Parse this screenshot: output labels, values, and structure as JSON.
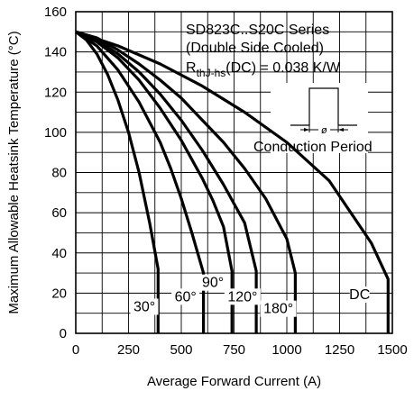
{
  "chart_data": {
    "type": "line",
    "title": "",
    "xlabel": "Average Forward Current (A)",
    "ylabel": "Maximum Allowable Heatsink Temperature (°C)",
    "xlim": [
      0,
      1500
    ],
    "ylim": [
      0,
      160
    ],
    "x_ticks": [
      "0",
      "250",
      "500",
      "750",
      "1000",
      "1250",
      "1500"
    ],
    "y_ticks": [
      "0",
      "20",
      "40",
      "60",
      "80",
      "100",
      "120",
      "140",
      "160"
    ],
    "grid": true,
    "annotation": {
      "line1": "SD823C..S20C Series",
      "line2": "(Double Side Cooled)",
      "line3_main": "R",
      "line3_sub": "thJ-hs",
      "line3_rest": "(DC) = 0.038 K/W",
      "conduction_label": "Conduction Period",
      "phi_symbol": "ø"
    },
    "series": [
      {
        "name": "30°",
        "x": [
          0,
          50,
          100,
          150,
          200,
          250,
          300,
          350,
          390,
          390
        ],
        "y": [
          150,
          146,
          139,
          129,
          116,
          100,
          80,
          55,
          32,
          0
        ]
      },
      {
        "name": "60°",
        "x": [
          0,
          100,
          200,
          300,
          400,
          450,
          500,
          550,
          605,
          605
        ],
        "y": [
          150,
          143,
          131,
          115,
          95,
          82,
          67,
          50,
          30,
          0
        ]
      },
      {
        "name": "90°",
        "x": [
          0,
          100,
          200,
          300,
          400,
          500,
          600,
          650,
          700,
          740,
          740
        ],
        "y": [
          150,
          145,
          137,
          126,
          112,
          96,
          77,
          66,
          53,
          31,
          0
        ]
      },
      {
        "name": "120°",
        "x": [
          0,
          100,
          200,
          300,
          400,
          500,
          600,
          700,
          800,
          855,
          855
        ],
        "y": [
          150,
          146,
          139,
          130,
          119,
          106,
          91,
          74,
          55,
          31,
          0
        ]
      },
      {
        "name": "180°",
        "x": [
          0,
          100,
          200,
          300,
          400,
          500,
          600,
          700,
          800,
          900,
          1000,
          1040,
          1040
        ],
        "y": [
          150,
          147,
          141,
          134,
          126,
          117,
          106,
          95,
          82,
          67,
          47,
          30,
          0
        ]
      },
      {
        "name": "DC",
        "x": [
          0,
          200,
          400,
          600,
          800,
          1000,
          1200,
          1400,
          1480,
          1480
        ],
        "y": [
          150,
          143,
          134,
          123,
          110,
          95,
          76,
          45,
          27,
          0
        ]
      }
    ],
    "curve_labels": [
      {
        "text": "30°",
        "x": 325,
        "y": 11
      },
      {
        "text": "60°",
        "x": 520,
        "y": 16
      },
      {
        "text": "90°",
        "x": 650,
        "y": 23
      },
      {
        "text": "120°",
        "x": 790,
        "y": 16
      },
      {
        "text": "180°",
        "x": 960,
        "y": 10
      },
      {
        "text": "DC",
        "x": 1345,
        "y": 17
      }
    ]
  }
}
